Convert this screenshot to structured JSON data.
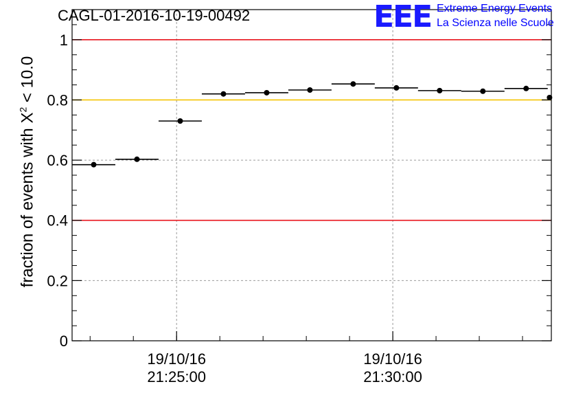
{
  "title": "CAGL-01-2016-10-19-00492",
  "logo": {
    "mark": "EEE",
    "line1": "Extreme Energy Events",
    "line2": "La Scienza nelle Scuole"
  },
  "ylabel": {
    "prefix": "fraction of events with ",
    "symbol": "X",
    "superscript": "2",
    "suffix": " < 10.0"
  },
  "colors": {
    "red_line": "#e8141c",
    "yellow_line": "#f5c400",
    "grid": "#9a9a9a",
    "points": "#000000"
  },
  "chart_data": {
    "type": "scatter",
    "grid": true,
    "ylim": [
      0,
      1.1
    ],
    "x_unit": "time (21:22:35 to 21:33:40)",
    "yticks": [
      0,
      0.2,
      0.4,
      0.6,
      0.8,
      1
    ],
    "ytick_labels": [
      "0",
      "0.2",
      "0.4",
      "0.6",
      "0.8",
      "1"
    ],
    "xticks": [
      {
        "time": "21:25:00",
        "label_date": "19/10/16",
        "label_time": "21:25:00"
      },
      {
        "time": "21:30:00",
        "label_date": "19/10/16",
        "label_time": "21:30:00"
      }
    ],
    "reference_lines": [
      {
        "y": 1.0,
        "color": "red"
      },
      {
        "y": 0.8,
        "color": "yellow"
      },
      {
        "y": 0.4,
        "color": "red"
      }
    ],
    "series": [
      {
        "points": [
          {
            "x_start": "21:22:35",
            "x_end": "21:23:35",
            "y": 0.585
          },
          {
            "x_start": "21:23:35",
            "x_end": "21:24:35",
            "y": 0.603
          },
          {
            "x_start": "21:24:35",
            "x_end": "21:25:35",
            "y": 0.73
          },
          {
            "x_start": "21:25:35",
            "x_end": "21:26:35",
            "y": 0.82
          },
          {
            "x_start": "21:26:35",
            "x_end": "21:27:35",
            "y": 0.824
          },
          {
            "x_start": "21:27:35",
            "x_end": "21:28:35",
            "y": 0.833
          },
          {
            "x_start": "21:28:35",
            "x_end": "21:29:35",
            "y": 0.853
          },
          {
            "x_start": "21:29:35",
            "x_end": "21:30:35",
            "y": 0.84
          },
          {
            "x_start": "21:30:35",
            "x_end": "21:31:35",
            "y": 0.831
          },
          {
            "x_start": "21:31:35",
            "x_end": "21:32:35",
            "y": 0.829
          },
          {
            "x_start": "21:32:35",
            "x_end": "21:33:35",
            "y": 0.838
          },
          {
            "x_start": "21:33:35",
            "x_end": "21:33:40",
            "y": 0.808
          }
        ]
      }
    ]
  }
}
